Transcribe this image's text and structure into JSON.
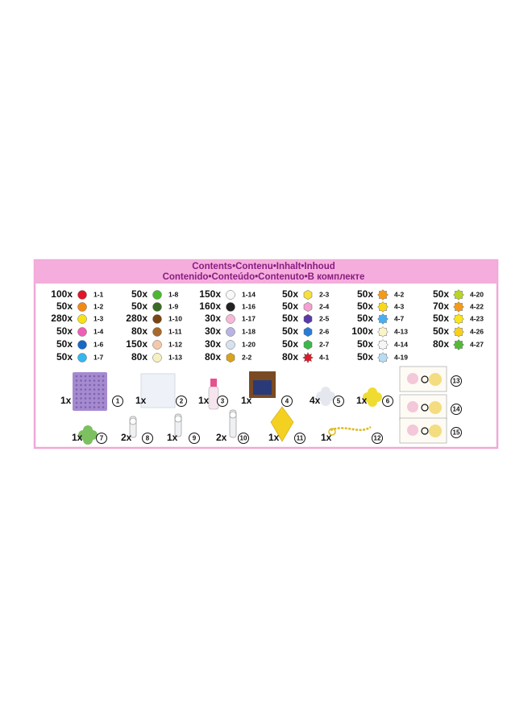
{
  "header": {
    "line1": "Contents•Contenu•Inhalt•Inhoud",
    "line2": "Contenido•Conteúdo•Contenuto•В комплекте"
  },
  "beads": [
    [
      {
        "qty": "100x",
        "code": "1-1",
        "color": "#e0152b",
        "shape": "round"
      },
      {
        "qty": "50x",
        "code": "1-2",
        "color": "#f28a12",
        "shape": "round"
      },
      {
        "qty": "280x",
        "code": "1-3",
        "color": "#f7e21a",
        "shape": "round"
      },
      {
        "qty": "50x",
        "code": "1-4",
        "color": "#ee5fb4",
        "shape": "round"
      },
      {
        "qty": "50x",
        "code": "1-6",
        "color": "#1569c7",
        "shape": "round"
      },
      {
        "qty": "50x",
        "code": "1-7",
        "color": "#36b6ee",
        "shape": "round"
      }
    ],
    [
      {
        "qty": "50x",
        "code": "1-8",
        "color": "#4cb82e",
        "shape": "round"
      },
      {
        "qty": "50x",
        "code": "1-9",
        "color": "#3a6b22",
        "shape": "round"
      },
      {
        "qty": "280x",
        "code": "1-10",
        "color": "#7a4515",
        "shape": "round"
      },
      {
        "qty": "80x",
        "code": "1-11",
        "color": "#a86a2c",
        "shape": "round"
      },
      {
        "qty": "150x",
        "code": "1-12",
        "color": "#f4c8a8",
        "shape": "round"
      },
      {
        "qty": "80x",
        "code": "1-13",
        "color": "#f6f0c0",
        "shape": "round"
      }
    ],
    [
      {
        "qty": "150x",
        "code": "1-14",
        "color": "#f8f8f8",
        "shape": "round"
      },
      {
        "qty": "160x",
        "code": "1-16",
        "color": "#222222",
        "shape": "round"
      },
      {
        "qty": "30x",
        "code": "1-17",
        "color": "#f6b8d6",
        "shape": "round"
      },
      {
        "qty": "30x",
        "code": "1-18",
        "color": "#b8b4e4",
        "shape": "round"
      },
      {
        "qty": "30x",
        "code": "1-20",
        "color": "#d6e2ee",
        "shape": "round"
      },
      {
        "qty": "80x",
        "code": "2-2",
        "color": "#d7a41c",
        "shape": "hex"
      }
    ],
    [
      {
        "qty": "50x",
        "code": "2-3",
        "color": "#f8e03a",
        "shape": "hex"
      },
      {
        "qty": "50x",
        "code": "2-4",
        "color": "#f4a0d0",
        "shape": "hex"
      },
      {
        "qty": "50x",
        "code": "2-5",
        "color": "#5a3aa8",
        "shape": "hex"
      },
      {
        "qty": "50x",
        "code": "2-6",
        "color": "#2a7ad8",
        "shape": "hex"
      },
      {
        "qty": "50x",
        "code": "2-7",
        "color": "#3cb84a",
        "shape": "hex"
      },
      {
        "qty": "80x",
        "code": "4-1",
        "color": "#e01828",
        "shape": "star"
      }
    ],
    [
      {
        "qty": "50x",
        "code": "4-2",
        "color": "#f49a1a",
        "shape": "sun"
      },
      {
        "qty": "50x",
        "code": "4-3",
        "color": "#f8d81a",
        "shape": "sun"
      },
      {
        "qty": "50x",
        "code": "4-7",
        "color": "#48aef0",
        "shape": "sun"
      },
      {
        "qty": "100x",
        "code": "4-13",
        "color": "#faf4c8",
        "shape": "sun"
      },
      {
        "qty": "50x",
        "code": "4-14",
        "color": "#f6f6f6",
        "shape": "sun"
      },
      {
        "qty": "50x",
        "code": "4-19",
        "color": "#b8dcf2",
        "shape": "sun"
      }
    ],
    [
      {
        "qty": "50x",
        "code": "4-20",
        "color": "#b8d428",
        "shape": "sun"
      },
      {
        "qty": "70x",
        "code": "4-22",
        "color": "#f49a1a",
        "shape": "sun"
      },
      {
        "qty": "50x",
        "code": "4-23",
        "color": "#f8e61a",
        "shape": "sun"
      },
      {
        "qty": "50x",
        "code": "4-26",
        "color": "#f8d01a",
        "shape": "sun"
      },
      {
        "qty": "80x",
        "code": "4-27",
        "color": "#54b83a",
        "shape": "sun"
      }
    ]
  ],
  "accessories": [
    {
      "qty": "1x",
      "number": "1"
    },
    {
      "qty": "1x",
      "number": "2"
    },
    {
      "qty": "1x",
      "number": "3"
    },
    {
      "qty": "1x",
      "number": "4"
    },
    {
      "qty": "4x",
      "number": "5"
    },
    {
      "qty": "1x",
      "number": "6"
    },
    {
      "qty": "1x",
      "number": "7"
    },
    {
      "qty": "2x",
      "number": "8"
    },
    {
      "qty": "1x",
      "number": "9"
    },
    {
      "qty": "2x",
      "number": "10"
    },
    {
      "qty": "1x",
      "number": "11"
    },
    {
      "qty": "1x",
      "number": "12"
    }
  ],
  "cards": [
    {
      "number": "13"
    },
    {
      "number": "14"
    },
    {
      "number": "15"
    }
  ]
}
